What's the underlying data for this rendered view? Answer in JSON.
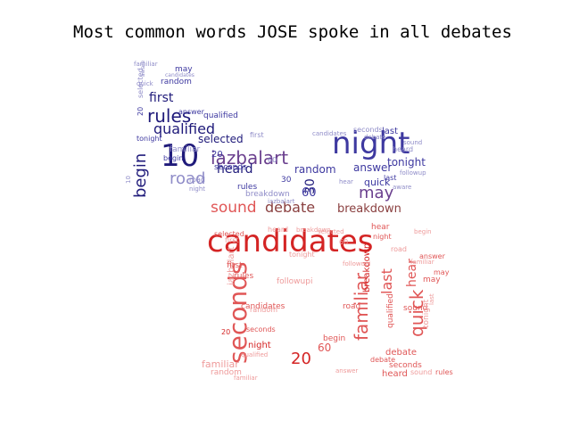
{
  "title": "Most common words JOSE spoke in all debates",
  "colors": {
    "blue_dark": "#1f1a7a",
    "blue_mid": "#3e39a0",
    "blue_light": "#8f8cc8",
    "purple": "#6a3f8e",
    "red_dark": "#d42424",
    "red_mid": "#e05656",
    "red_light": "#ee9a9a",
    "brown": "#8a4040"
  },
  "words_top": [
    "10",
    "night",
    "iazbalart",
    "rules",
    "qualified",
    "first",
    "begin",
    "road",
    "may",
    "sound",
    "debate",
    "breakdown",
    "heard",
    "random",
    "answer",
    "tonight",
    "30",
    "60",
    "selected",
    "quick",
    "last",
    "seconds",
    "20",
    "familiar",
    "candidates",
    "hear",
    "followup",
    "aware"
  ],
  "words_bottom": [
    "candidates",
    "seconds",
    "familiar",
    "quick",
    "hear",
    "last",
    "breakdown",
    "20",
    "60",
    "begin",
    "debate",
    "heard",
    "seconds",
    "random",
    "familiar",
    "iazbalart",
    "night",
    "rules",
    "first",
    "road",
    "sound",
    "tonight",
    "may",
    "qualified",
    "candidates",
    "followupi",
    "answer",
    "selected"
  ]
}
